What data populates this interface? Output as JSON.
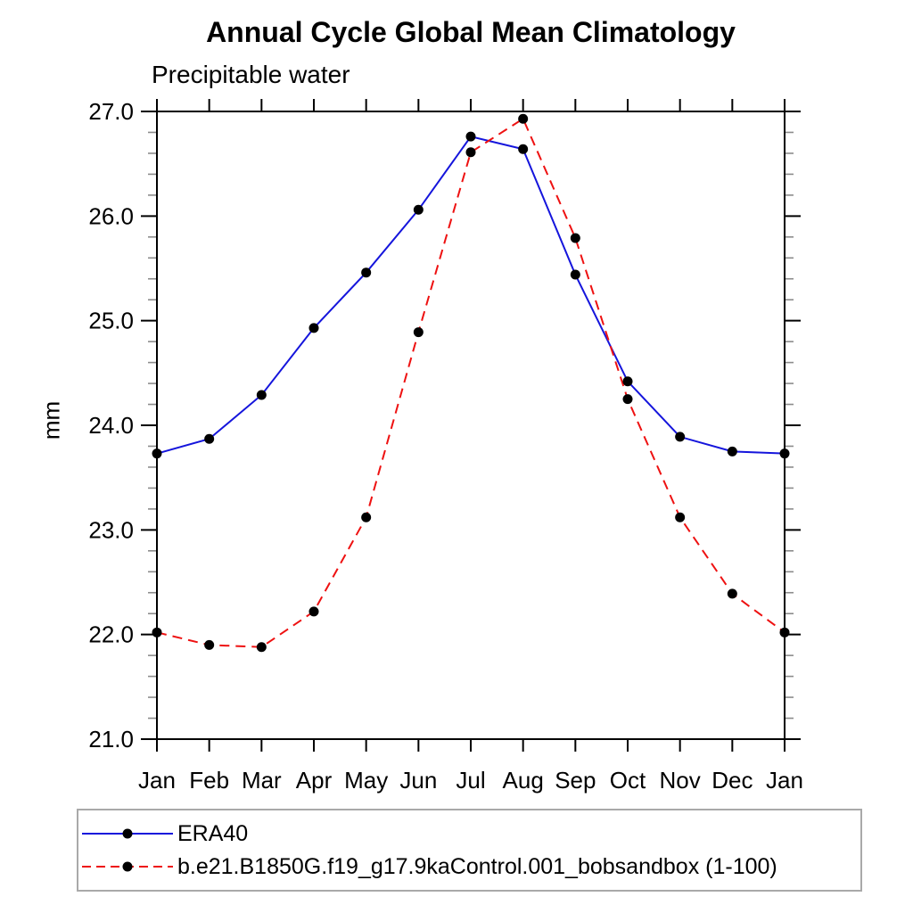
{
  "chart_data": {
    "type": "line",
    "title": "Annual Cycle Global Mean Climatology",
    "subtitle": "Precipitable water",
    "xlabel": "",
    "ylabel": "mm",
    "categories": [
      "Jan",
      "Feb",
      "Mar",
      "Apr",
      "May",
      "Jun",
      "Jul",
      "Aug",
      "Sep",
      "Oct",
      "Nov",
      "Dec",
      "Jan"
    ],
    "ylim": [
      21.0,
      27.0
    ],
    "ytick_major_step": 1.0,
    "ytick_minor_step": 0.2,
    "ytick_labels": [
      "21.0",
      "22.0",
      "23.0",
      "24.0",
      "25.0",
      "26.0",
      "27.0"
    ],
    "grid": false,
    "legend_position": "bottom-left-box",
    "marker": "filled-circle",
    "marker_color": "#000000",
    "series": [
      {
        "name": "ERA40",
        "color": "#1515dc",
        "line_style": "solid",
        "values": [
          23.73,
          23.87,
          24.29,
          24.93,
          25.46,
          26.06,
          26.76,
          26.64,
          25.44,
          24.42,
          23.89,
          23.75,
          23.73
        ]
      },
      {
        "name": "b.e21.B1850G.f19_g17.9kaControl.001_bobsandbox (1-100)",
        "color": "#ee1111",
        "line_style": "dashed",
        "values": [
          22.02,
          21.9,
          21.88,
          22.22,
          23.12,
          24.89,
          26.61,
          26.93,
          25.79,
          24.25,
          23.12,
          22.39,
          22.02
        ]
      }
    ]
  }
}
